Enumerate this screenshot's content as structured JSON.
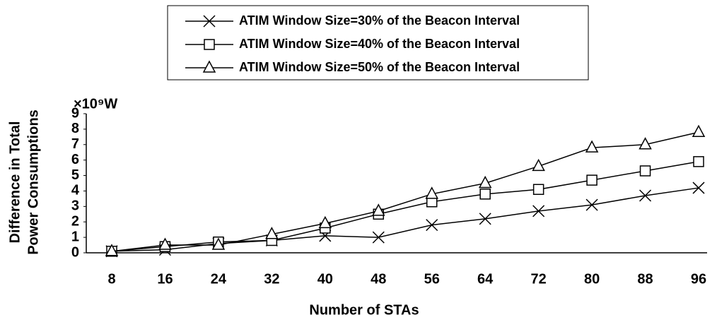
{
  "chart_data": {
    "type": "line",
    "xlabel": "Number of STAs",
    "ylabel": [
      "Difference in Total",
      "Power Consumptions"
    ],
    "unit_label": "×10⁹W",
    "categories": [
      "8",
      "16",
      "24",
      "32",
      "40",
      "48",
      "56",
      "64",
      "72",
      "80",
      "88",
      "96"
    ],
    "ylim": [
      0,
      9
    ],
    "yticks": [
      0,
      1,
      2,
      3,
      4,
      5,
      6,
      7,
      8,
      9
    ],
    "grid": false,
    "series": [
      {
        "name": "ATIM Window Size=30% of the Beacon Interval",
        "color": "#000000",
        "marker": "x",
        "values": [
          0.1,
          0.2,
          0.6,
          0.8,
          1.1,
          1.0,
          1.8,
          2.2,
          2.7,
          3.1,
          3.7,
          4.2
        ]
      },
      {
        "name": "ATIM Window Size=40% of the Beacon Interval",
        "color": "#000000",
        "marker": "square",
        "values": [
          0.1,
          0.4,
          0.7,
          0.8,
          1.6,
          2.5,
          3.3,
          3.8,
          4.1,
          4.7,
          5.3,
          5.9
        ]
      },
      {
        "name": "ATIM Window Size=50% of the Beacon Interval",
        "color": "#000000",
        "marker": "triangle",
        "values": [
          0.1,
          0.5,
          0.5,
          1.2,
          1.9,
          2.7,
          3.8,
          4.5,
          5.6,
          6.8,
          7.0,
          7.8
        ]
      }
    ]
  }
}
